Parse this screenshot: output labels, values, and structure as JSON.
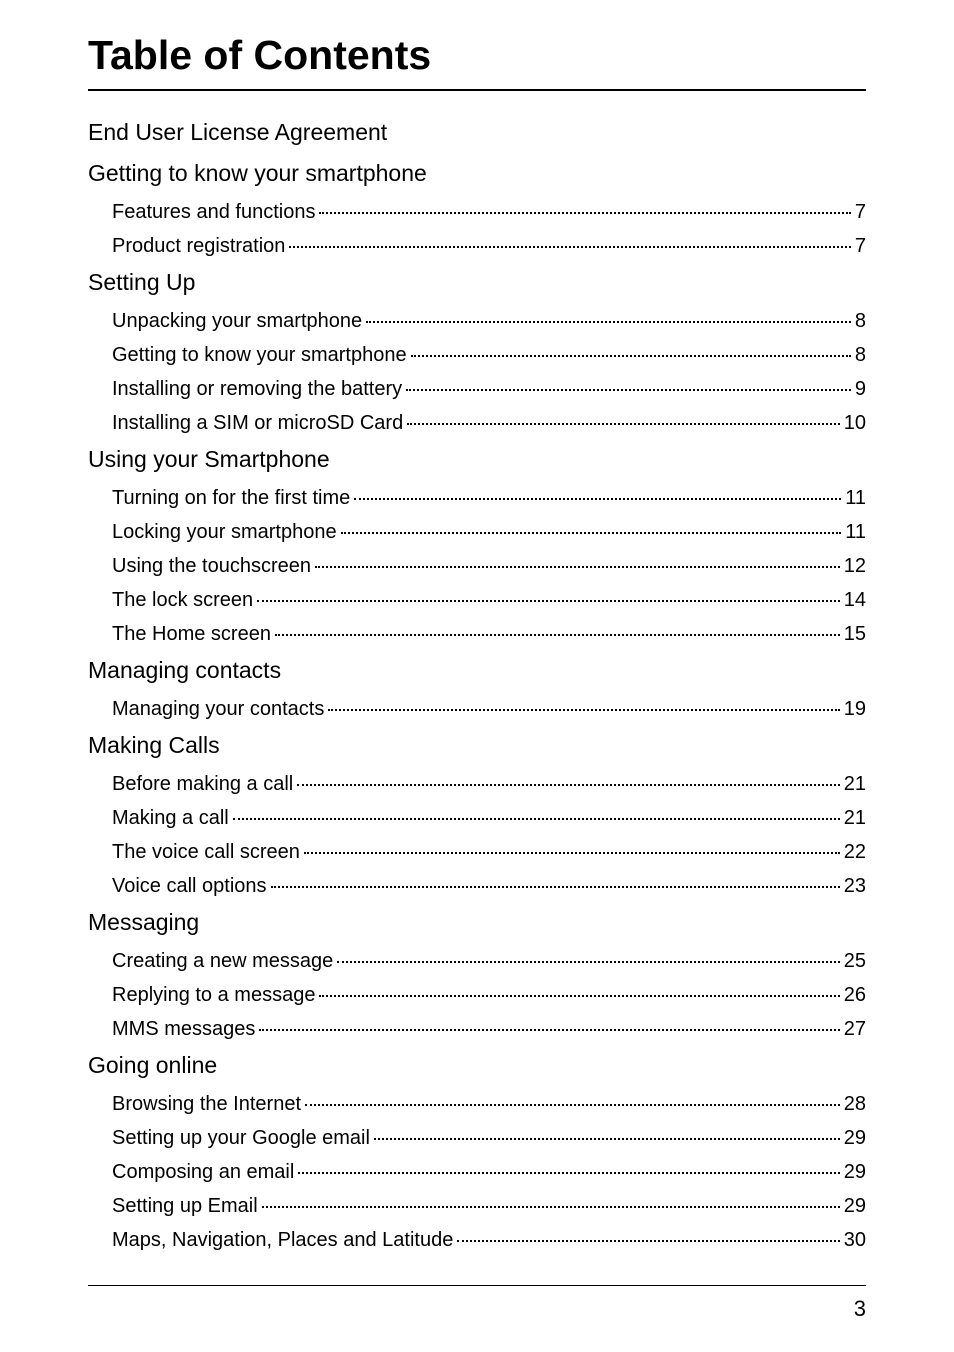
{
  "title": "Table of Contents",
  "sections": [
    {
      "heading": "End User License Agreement",
      "entries": []
    },
    {
      "heading": "Getting to know your smartphone",
      "entries": [
        {
          "label": "Features and functions",
          "page": "7"
        },
        {
          "label": "Product registration",
          "page": "7"
        }
      ]
    },
    {
      "heading": "Setting Up",
      "entries": [
        {
          "label": "Unpacking your smartphone",
          "page": "8"
        },
        {
          "label": "Getting to know your smartphone",
          "page": "8"
        },
        {
          "label": "Installing or removing the battery",
          "page": "9"
        },
        {
          "label": "Installing a SIM or microSD Card",
          "page": "10"
        }
      ]
    },
    {
      "heading": "Using your Smartphone",
      "entries": [
        {
          "label": "Turning on for the first time",
          "page": "11"
        },
        {
          "label": "Locking your smartphone",
          "page": "11"
        },
        {
          "label": "Using the touchscreen",
          "page": "12"
        },
        {
          "label": "The lock screen",
          "page": "14"
        },
        {
          "label": "The Home screen",
          "page": "15"
        }
      ]
    },
    {
      "heading": "Managing contacts",
      "entries": [
        {
          "label": "Managing your contacts",
          "page": "19"
        }
      ]
    },
    {
      "heading": "Making Calls",
      "entries": [
        {
          "label": "Before making a call",
          "page": "21"
        },
        {
          "label": "Making a call",
          "page": "21"
        },
        {
          "label": "The voice call screen",
          "page": "22"
        },
        {
          "label": "Voice call options",
          "page": "23"
        }
      ]
    },
    {
      "heading": "Messaging",
      "entries": [
        {
          "label": "Creating a new message",
          "page": "25"
        },
        {
          "label": "Replying to a message",
          "page": "26"
        },
        {
          "label": "MMS messages",
          "page": "27"
        }
      ]
    },
    {
      "heading": "Going online",
      "entries": [
        {
          "label": "Browsing the Internet",
          "page": "28"
        },
        {
          "label": "Setting up your Google email",
          "page": "29"
        },
        {
          "label": "Composing an email",
          "page": "29"
        },
        {
          "label": "Setting up Email",
          "page": "29"
        },
        {
          "label": "Maps, Navigation, Places and Latitude",
          "page": "30"
        }
      ]
    }
  ],
  "footer_page_number": "3",
  "colors": {
    "text": "#000000",
    "background": "#ffffff",
    "rule": "#000000"
  },
  "typography": {
    "title_fontsize": 41,
    "heading_fontsize": 23,
    "entry_fontsize": 20,
    "footer_fontsize": 22,
    "font_family": "Arial, Helvetica, sans-serif"
  }
}
